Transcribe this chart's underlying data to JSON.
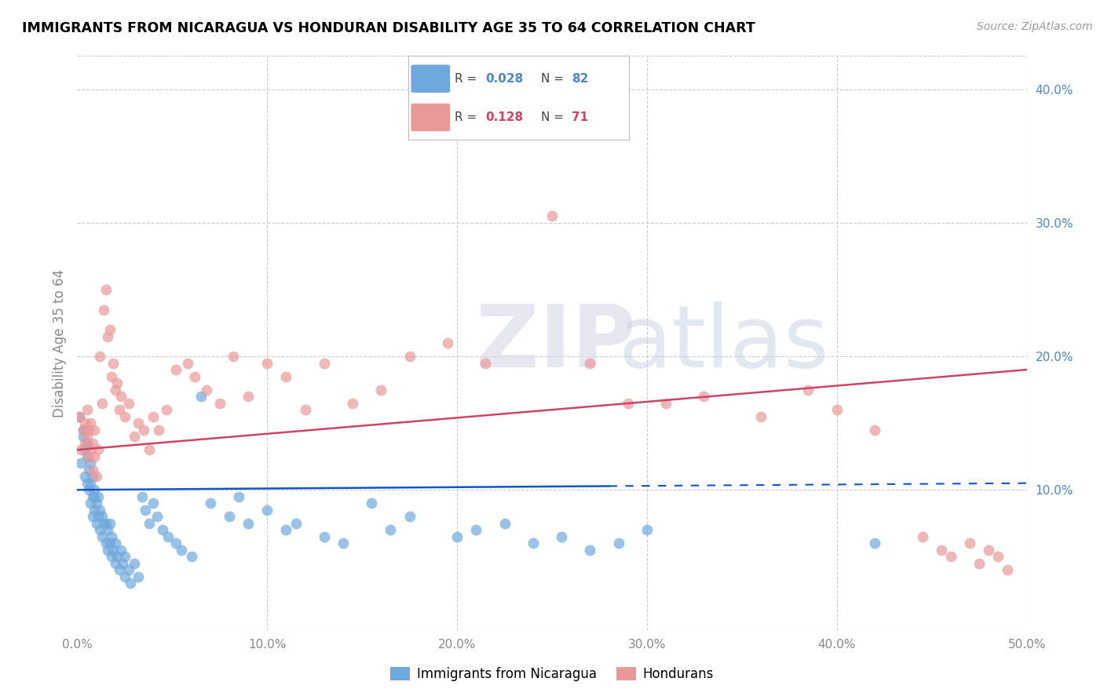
{
  "title": "IMMIGRANTS FROM NICARAGUA VS HONDURAN DISABILITY AGE 35 TO 64 CORRELATION CHART",
  "source": "Source: ZipAtlas.com",
  "ylabel_left": "Disability Age 35 to 64",
  "xlim": [
    0.0,
    0.5
  ],
  "ylim": [
    -0.005,
    0.425
  ],
  "xticks": [
    0.0,
    0.1,
    0.2,
    0.3,
    0.4,
    0.5
  ],
  "xticklabels": [
    "0.0%",
    "10.0%",
    "20.0%",
    "30.0%",
    "40.0%",
    "50.0%"
  ],
  "yticks_right": [
    0.1,
    0.2,
    0.3,
    0.4
  ],
  "yticklabels_right": [
    "10.0%",
    "20.0%",
    "30.0%",
    "40.0%"
  ],
  "blue_color": "#6fa8dc",
  "pink_color": "#ea9999",
  "blue_line_color": "#1155cc",
  "pink_line_color": "#cc4466",
  "background_color": "#ffffff",
  "grid_color": "#cccccc",
  "title_color": "#000000",
  "axis_label_color": "#888888",
  "right_tick_color": "#4a86c8",
  "bottom_tick_color": "#888888",
  "blue_scatter_x": [
    0.001,
    0.002,
    0.003,
    0.003,
    0.004,
    0.004,
    0.005,
    0.005,
    0.005,
    0.006,
    0.006,
    0.007,
    0.007,
    0.007,
    0.008,
    0.008,
    0.008,
    0.009,
    0.009,
    0.009,
    0.01,
    0.01,
    0.011,
    0.011,
    0.012,
    0.012,
    0.013,
    0.013,
    0.014,
    0.015,
    0.015,
    0.016,
    0.016,
    0.017,
    0.017,
    0.018,
    0.018,
    0.019,
    0.02,
    0.02,
    0.021,
    0.022,
    0.023,
    0.024,
    0.025,
    0.025,
    0.027,
    0.028,
    0.03,
    0.032,
    0.034,
    0.036,
    0.038,
    0.04,
    0.042,
    0.045,
    0.048,
    0.052,
    0.055,
    0.06,
    0.065,
    0.07,
    0.08,
    0.085,
    0.09,
    0.1,
    0.11,
    0.115,
    0.13,
    0.14,
    0.155,
    0.165,
    0.175,
    0.2,
    0.21,
    0.225,
    0.24,
    0.255,
    0.27,
    0.285,
    0.3,
    0.42
  ],
  "blue_scatter_y": [
    0.155,
    0.12,
    0.14,
    0.145,
    0.11,
    0.13,
    0.105,
    0.125,
    0.135,
    0.1,
    0.115,
    0.09,
    0.105,
    0.12,
    0.08,
    0.095,
    0.11,
    0.085,
    0.095,
    0.1,
    0.075,
    0.09,
    0.08,
    0.095,
    0.07,
    0.085,
    0.065,
    0.08,
    0.075,
    0.06,
    0.075,
    0.055,
    0.07,
    0.06,
    0.075,
    0.05,
    0.065,
    0.055,
    0.045,
    0.06,
    0.05,
    0.04,
    0.055,
    0.045,
    0.035,
    0.05,
    0.04,
    0.03,
    0.045,
    0.035,
    0.095,
    0.085,
    0.075,
    0.09,
    0.08,
    0.07,
    0.065,
    0.06,
    0.055,
    0.05,
    0.17,
    0.09,
    0.08,
    0.095,
    0.075,
    0.085,
    0.07,
    0.075,
    0.065,
    0.06,
    0.09,
    0.07,
    0.08,
    0.065,
    0.07,
    0.075,
    0.06,
    0.065,
    0.055,
    0.06,
    0.07,
    0.06
  ],
  "pink_scatter_x": [
    0.001,
    0.002,
    0.003,
    0.004,
    0.004,
    0.005,
    0.005,
    0.006,
    0.006,
    0.007,
    0.007,
    0.008,
    0.008,
    0.009,
    0.009,
    0.01,
    0.011,
    0.012,
    0.013,
    0.014,
    0.015,
    0.016,
    0.017,
    0.018,
    0.019,
    0.02,
    0.021,
    0.022,
    0.023,
    0.025,
    0.027,
    0.03,
    0.032,
    0.035,
    0.038,
    0.04,
    0.043,
    0.047,
    0.052,
    0.058,
    0.062,
    0.068,
    0.075,
    0.082,
    0.09,
    0.1,
    0.11,
    0.12,
    0.13,
    0.145,
    0.16,
    0.175,
    0.195,
    0.215,
    0.25,
    0.27,
    0.29,
    0.31,
    0.33,
    0.36,
    0.385,
    0.4,
    0.42,
    0.445,
    0.455,
    0.46,
    0.47,
    0.475,
    0.48,
    0.485,
    0.49
  ],
  "pink_scatter_y": [
    0.155,
    0.13,
    0.145,
    0.135,
    0.15,
    0.14,
    0.16,
    0.125,
    0.145,
    0.13,
    0.15,
    0.115,
    0.135,
    0.125,
    0.145,
    0.11,
    0.13,
    0.2,
    0.165,
    0.235,
    0.25,
    0.215,
    0.22,
    0.185,
    0.195,
    0.175,
    0.18,
    0.16,
    0.17,
    0.155,
    0.165,
    0.14,
    0.15,
    0.145,
    0.13,
    0.155,
    0.145,
    0.16,
    0.19,
    0.195,
    0.185,
    0.175,
    0.165,
    0.2,
    0.17,
    0.195,
    0.185,
    0.16,
    0.195,
    0.165,
    0.175,
    0.2,
    0.21,
    0.195,
    0.305,
    0.195,
    0.165,
    0.165,
    0.17,
    0.155,
    0.175,
    0.16,
    0.145,
    0.065,
    0.055,
    0.05,
    0.06,
    0.045,
    0.055,
    0.05,
    0.04
  ],
  "blue_trend_x": [
    0.0,
    0.5
  ],
  "blue_trend_y": [
    0.1,
    0.105
  ],
  "pink_trend_x": [
    0.0,
    0.5
  ],
  "pink_trend_y": [
    0.13,
    0.19
  ]
}
